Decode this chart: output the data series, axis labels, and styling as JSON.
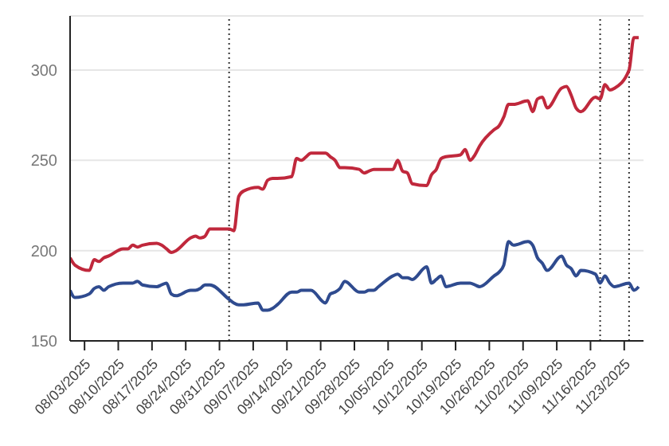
{
  "chart_data": {
    "type": "line",
    "x": [
      "2025-07-31",
      "2025-08-01",
      "2025-08-04",
      "2025-08-05",
      "2025-08-06",
      "2025-08-07",
      "2025-08-08",
      "2025-08-11",
      "2025-08-12",
      "2025-08-13",
      "2025-08-14",
      "2025-08-15",
      "2025-08-18",
      "2025-08-19",
      "2025-08-20",
      "2025-08-21",
      "2025-08-22",
      "2025-08-25",
      "2025-08-26",
      "2025-08-27",
      "2025-08-28",
      "2025-08-29",
      "2025-09-02",
      "2025-09-03",
      "2025-09-04",
      "2025-09-05",
      "2025-09-08",
      "2025-09-09",
      "2025-09-10",
      "2025-09-11",
      "2025-09-12",
      "2025-09-15",
      "2025-09-16",
      "2025-09-17",
      "2025-09-18",
      "2025-09-19",
      "2025-09-22",
      "2025-09-23",
      "2025-09-24",
      "2025-09-25",
      "2025-09-26",
      "2025-09-29",
      "2025-09-30",
      "2025-10-01",
      "2025-10-02",
      "2025-10-03",
      "2025-10-06",
      "2025-10-07",
      "2025-10-08",
      "2025-10-09",
      "2025-10-10",
      "2025-10-13",
      "2025-10-14",
      "2025-10-15",
      "2025-10-16",
      "2025-10-17",
      "2025-10-20",
      "2025-10-21",
      "2025-10-22",
      "2025-10-23",
      "2025-10-24",
      "2025-10-27",
      "2025-10-28",
      "2025-10-29",
      "2025-10-30",
      "2025-10-31",
      "2025-11-03",
      "2025-11-04",
      "2025-11-05",
      "2025-11-06",
      "2025-11-07",
      "2025-11-10",
      "2025-11-11",
      "2025-11-12",
      "2025-11-13",
      "2025-11-14",
      "2025-11-17",
      "2025-11-18",
      "2025-11-19",
      "2025-11-20",
      "2025-11-21",
      "2025-11-24",
      "2025-11-25",
      "2025-11-26"
    ],
    "series": [
      {
        "color": "#c0283c",
        "values": [
          196,
          192,
          189,
          195,
          194,
          196,
          197,
          201,
          201,
          203,
          202,
          203,
          204,
          203,
          201,
          199,
          200,
          207,
          208,
          207,
          208,
          212,
          212,
          211,
          230,
          233,
          235,
          234,
          239,
          240,
          240,
          241,
          251,
          250,
          252,
          254,
          254,
          252,
          250,
          246,
          246,
          245,
          243,
          244,
          245,
          245,
          245,
          250,
          244,
          243,
          237,
          236,
          242,
          245,
          251,
          252,
          253,
          256,
          250,
          253,
          258,
          267,
          269,
          274,
          281,
          281,
          283,
          277,
          284,
          285,
          279,
          290,
          291,
          286,
          279,
          277,
          285,
          284,
          292,
          289,
          290,
          300,
          318,
          318
        ]
      },
      {
        "color": "#2f4b8f",
        "values": [
          178,
          174,
          176,
          179,
          180,
          178,
          180,
          182,
          182,
          182,
          183,
          181,
          180,
          181,
          182,
          176,
          175,
          178,
          178,
          179,
          181,
          181,
          173,
          171,
          170,
          170,
          171,
          167,
          167,
          168,
          170,
          177,
          177,
          178,
          178,
          178,
          171,
          176,
          177,
          179,
          183,
          177,
          177,
          178,
          178,
          180,
          186,
          187,
          185,
          185,
          184,
          191,
          182,
          184,
          186,
          180,
          182,
          182,
          182,
          181,
          180,
          186,
          188,
          192,
          205,
          203,
          205,
          203,
          196,
          193,
          189,
          197,
          192,
          190,
          186,
          189,
          187,
          182,
          186,
          182,
          180,
          182,
          178,
          180
        ]
      }
    ],
    "xlim": [
      "2025-07-31",
      "2025-11-27"
    ],
    "xticks": [
      {
        "value": "2025-08-03",
        "label": "08/03/2025"
      },
      {
        "value": "2025-08-10",
        "label": "08/10/2025"
      },
      {
        "value": "2025-08-17",
        "label": "08/17/2025"
      },
      {
        "value": "2025-08-24",
        "label": "08/24/2025"
      },
      {
        "value": "2025-08-31",
        "label": "08/31/2025"
      },
      {
        "value": "2025-09-07",
        "label": "09/07/2025"
      },
      {
        "value": "2025-09-14",
        "label": "09/14/2025"
      },
      {
        "value": "2025-09-21",
        "label": "09/21/2025"
      },
      {
        "value": "2025-09-28",
        "label": "09/28/2025"
      },
      {
        "value": "2025-10-05",
        "label": "10/05/2025"
      },
      {
        "value": "2025-10-12",
        "label": "10/12/2025"
      },
      {
        "value": "2025-10-19",
        "label": "10/19/2025"
      },
      {
        "value": "2025-10-26",
        "label": "10/26/2025"
      },
      {
        "value": "2025-11-02",
        "label": "11/02/2025"
      },
      {
        "value": "2025-11-09",
        "label": "11/09/2025"
      },
      {
        "value": "2025-11-16",
        "label": "11/16/2025"
      },
      {
        "value": "2025-11-23",
        "label": "11/23/2025"
      }
    ],
    "ylim": [
      150,
      330
    ],
    "yticks": [
      150,
      200,
      250,
      300
    ],
    "grid": "y",
    "marker": "none",
    "line_style": "solid",
    "ref_lines": [
      {
        "axis": "x",
        "value": "2025-09-02",
        "color": "#333333",
        "line_style": "dotted"
      },
      {
        "axis": "x",
        "value": "2025-11-18",
        "color": "#333333",
        "line_style": "dotted"
      },
      {
        "axis": "x",
        "value": "2025-11-24",
        "color": "#333333",
        "line_style": "dotted"
      }
    ]
  }
}
